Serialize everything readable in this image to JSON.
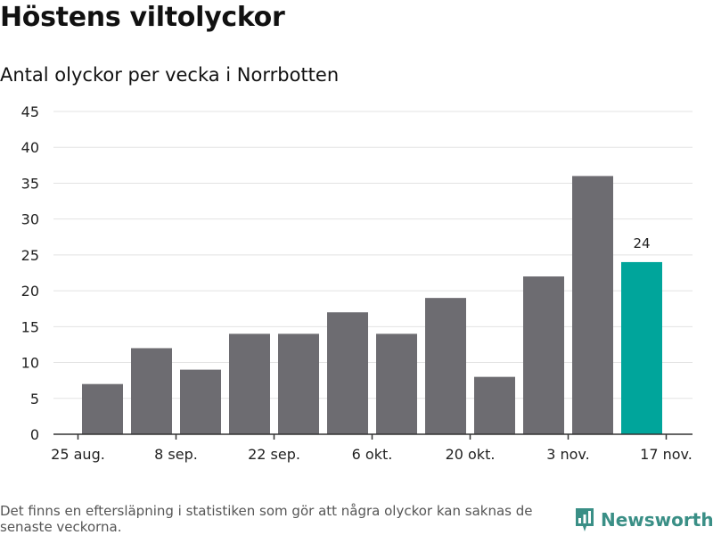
{
  "header": {
    "title": "Höstens viltolyckor",
    "subtitle": "Antal olyckor per vecka i Norrbotten"
  },
  "chart_data": {
    "type": "bar",
    "title": "Höstens viltolyckor",
    "subtitle": "Antal olyckor per vecka i Norrbotten",
    "xlabel": "",
    "ylabel": "",
    "ylim": [
      0,
      45
    ],
    "yticks": [
      0,
      5,
      10,
      15,
      20,
      25,
      30,
      35,
      40,
      45
    ],
    "grid": true,
    "x_start_week": 0,
    "x_end_week": 13,
    "values": [
      7,
      12,
      9,
      14,
      14,
      17,
      14,
      19,
      8,
      22,
      36,
      24
    ],
    "highlight_index": 11,
    "highlight_label": "24",
    "xticks": [
      {
        "label": "25 aug.",
        "week": 0
      },
      {
        "label": "8 sep.",
        "week": 2
      },
      {
        "label": "22 sep.",
        "week": 4
      },
      {
        "label": "6 okt.",
        "week": 6
      },
      {
        "label": "20 okt.",
        "week": 8
      },
      {
        "label": "3 nov.",
        "week": 10
      },
      {
        "label": "17 nov.",
        "week": 12
      }
    ],
    "colors": {
      "bar": "#6d6c71",
      "highlight": "#00a59b",
      "grid": "#e3e3e3",
      "axis": "#333333",
      "text": "#222222"
    }
  },
  "footer": {
    "note": "Det finns en eftersläpning i statistiken som gör att några olyckor kan saknas de senaste veckorna.",
    "brand": "Newsworthy",
    "brand_icon": "newsworthy-logo-icon",
    "brand_color": "#3a8f86"
  }
}
